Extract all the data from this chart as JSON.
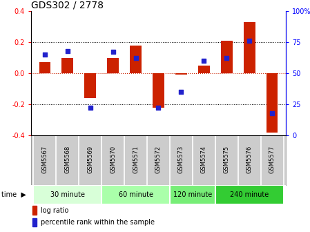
{
  "title": "GDS302 / 2778",
  "samples": [
    "GSM5567",
    "GSM5568",
    "GSM5569",
    "GSM5570",
    "GSM5571",
    "GSM5572",
    "GSM5573",
    "GSM5574",
    "GSM5575",
    "GSM5576",
    "GSM5577"
  ],
  "log_ratio": [
    0.07,
    0.1,
    -0.16,
    0.1,
    0.18,
    -0.22,
    -0.01,
    0.05,
    0.21,
    0.33,
    -0.38
  ],
  "percentile": [
    65,
    68,
    22,
    67,
    62,
    22,
    35,
    60,
    62,
    76,
    18
  ],
  "ylim_left": [
    -0.4,
    0.4
  ],
  "ylim_right": [
    0,
    100
  ],
  "yticks_left": [
    -0.4,
    -0.2,
    0.0,
    0.2,
    0.4
  ],
  "yticks_right": [
    0,
    25,
    50,
    75,
    100
  ],
  "bar_color": "#cc2200",
  "dot_color": "#2222cc",
  "grid_color": "#000000",
  "zero_line_color": "#cc2200",
  "background_color": "#ffffff",
  "time_groups": [
    {
      "label": "30 minute",
      "start": 0,
      "end": 2,
      "color": "#d8ffd8"
    },
    {
      "label": "60 minute",
      "start": 3,
      "end": 5,
      "color": "#aaffaa"
    },
    {
      "label": "120 minute",
      "start": 6,
      "end": 7,
      "color": "#77ee77"
    },
    {
      "label": "240 minute",
      "start": 8,
      "end": 10,
      "color": "#33cc33"
    }
  ],
  "legend_bar_label": "log ratio",
  "legend_dot_label": "percentile rank within the sample",
  "title_fontsize": 10,
  "tick_fontsize": 7,
  "sample_fontsize": 6,
  "time_fontsize": 7,
  "legend_fontsize": 7,
  "bar_width": 0.5,
  "dot_size": 25
}
